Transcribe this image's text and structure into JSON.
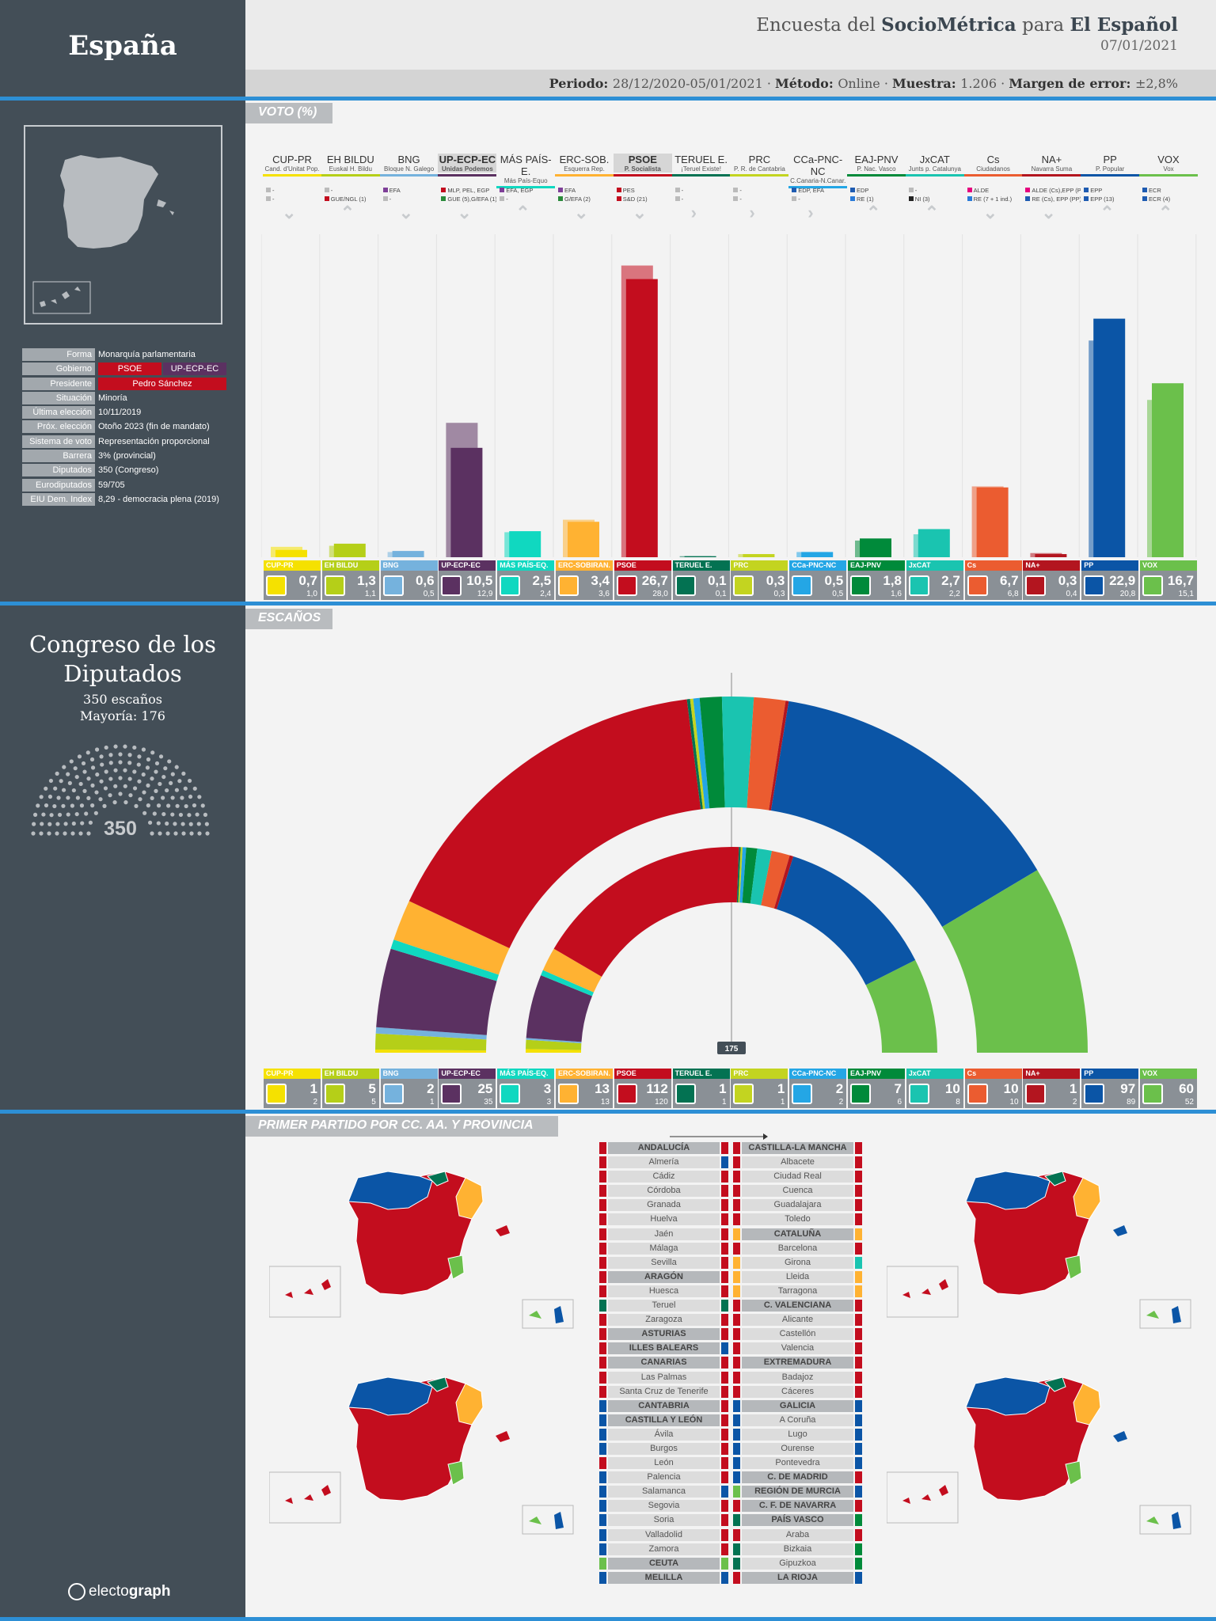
{
  "country": "España",
  "header": {
    "title_parts": [
      "Encuesta del ",
      "SocioMétrica",
      " para ",
      "El Español"
    ],
    "date": "07/01/2021",
    "meta_parts": [
      "Periodo: ",
      "28/12/2020-05/01/2021",
      " · ",
      "Método: ",
      "Online",
      " · ",
      "Muestra: ",
      "1.206",
      " · ",
      "Margen de error: ",
      "±2,8%"
    ]
  },
  "sections": {
    "votes": "VOTO (%)",
    "seats": "ESCAÑOS",
    "first": "PRIMER PARTIDO POR CC. AA. Y PROVINCIA"
  },
  "info": [
    {
      "label": "Forma",
      "value": "Monarquía parlamentaria"
    },
    {
      "label": "Gobierno",
      "value": "",
      "badges": [
        {
          "text": "PSOE",
          "color": "#c30d1e"
        },
        {
          "text": "UP-ECP-EC",
          "color": "#5b3161"
        }
      ]
    },
    {
      "label": "Presidente",
      "value": "",
      "badges": [
        {
          "text": "Pedro Sánchez",
          "color": "#c30d1e"
        }
      ]
    },
    {
      "label": "Situación",
      "value": "Minoría"
    },
    {
      "label": "Última elección",
      "value": "10/11/2019"
    },
    {
      "label": "Próx. elección",
      "value": "Otoño 2023 (fin de mandato)"
    },
    {
      "label": "Sistema de voto",
      "value": "Representación proporcional"
    },
    {
      "label": "Barrera",
      "value": "3% (provincial)"
    },
    {
      "label": "Diputados",
      "value": "350 (Congreso)"
    },
    {
      "label": "Eurodiputados",
      "value": "59/705"
    },
    {
      "label": "EIU Dem. Index",
      "value": "8,29 - democracia plena (2019)"
    }
  ],
  "congress": {
    "title": "Congreso de los Diputados",
    "seats_text": "350 escaños",
    "majority_text": "Mayoría: 176",
    "total": "350",
    "majority_line_label": "175"
  },
  "logo": {
    "part1": "electo",
    "part2": "graph"
  },
  "chart_data": [
    {
      "type": "bar",
      "title": "VOTO (%)",
      "categories": [
        "CUP-PR",
        "EH BILDU",
        "BNG",
        "UP-ECP-EC",
        "MÁS PAÍS-E.",
        "ERC-SOB.",
        "PSOE",
        "TERUEL E.",
        "PRC",
        "CCa-PNC-NC",
        "EAJ-PNV",
        "JxCAT",
        "Cs",
        "NA+",
        "PP",
        "VOX"
      ],
      "series": [
        {
          "values": [
            0.7,
            1.3,
            0.6,
            10.5,
            2.5,
            3.4,
            26.7,
            0.1,
            0.3,
            0.5,
            1.8,
            2.7,
            6.7,
            0.3,
            22.9,
            16.7
          ]
        },
        {
          "values": [
            1.0,
            1.1,
            0.5,
            12.9,
            2.4,
            3.6,
            28.0,
            0.1,
            0.3,
            0.5,
            1.6,
            2.2,
            6.8,
            0.4,
            20.8,
            15.1
          ]
        }
      ],
      "ylim": [
        0,
        30
      ]
    },
    {
      "type": "pie",
      "title": "ESCAÑOS",
      "categories": [
        "CUP-PR",
        "EH BILDU",
        "BNG",
        "UP-ECP-EC",
        "MÁS PAÍS-E.",
        "ERC-SOB.",
        "PSOE",
        "TERUEL E.",
        "PRC",
        "CCa-PNC-NC",
        "EAJ-PNV",
        "JxCAT",
        "Cs",
        "NA+",
        "PP",
        "VOX"
      ],
      "series": [
        {
          "values": [
            1,
            5,
            2,
            25,
            3,
            13,
            112,
            1,
            1,
            2,
            7,
            10,
            10,
            1,
            97,
            60
          ]
        },
        {
          "values": [
            2,
            5,
            1,
            35,
            3,
            13,
            120,
            1,
            1,
            2,
            6,
            8,
            10,
            2,
            89,
            52
          ]
        }
      ]
    }
  ],
  "parties": [
    {
      "abbr": "CUP-PR",
      "name": "Cand. d'Unitat Pop.",
      "box": "CUP-PR",
      "color": "#f5e100",
      "alliances": [
        "-",
        "-"
      ],
      "acolors": [
        "#bbb",
        "#bbb"
      ],
      "chev": "⌄",
      "vote": "0,7",
      "vote_prev": "1,0",
      "seats": "1",
      "seats_prev": "2"
    },
    {
      "abbr": "EH BILDU",
      "name": "Euskal H. Bildu",
      "box": "EH BILDU",
      "color": "#b5cf18",
      "alliances": [
        "-",
        "GUE/NGL (1)"
      ],
      "acolors": [
        "#bbb",
        "#c30d1e"
      ],
      "chev": "⌃",
      "vote": "1,3",
      "vote_prev": "1,1",
      "seats": "5",
      "seats_prev": "5"
    },
    {
      "abbr": "BNG",
      "name": "Bloque N. Galego",
      "box": "BNG",
      "color": "#75b2dd",
      "alliances": [
        "EFA",
        "-"
      ],
      "acolors": [
        "#7e3f98",
        "#bbb"
      ],
      "chev": "⌄",
      "vote": "0,6",
      "vote_prev": "0,5",
      "seats": "2",
      "seats_prev": "1"
    },
    {
      "abbr": "UP-ECP-EC",
      "name": "Unidas Podemos",
      "box": "UP-ECP-EC",
      "color": "#5b3161",
      "alliances": [
        "MLP, PEL, EGP",
        "GUE (5),G/EFA (1)"
      ],
      "acolors": [
        "#c30d1e",
        "#2a8a3a"
      ],
      "chev": "⌄",
      "vote": "10,5",
      "vote_prev": "12,9",
      "seats": "25",
      "seats_prev": "35"
    },
    {
      "abbr": "MÁS PAÍS-E.",
      "name": "Más País-Equo",
      "box": "MÁS PAÍS-EQ.",
      "color": "#10d8c0",
      "alliances": [
        "EFA, EGP",
        "-"
      ],
      "acolors": [
        "#7e3f98",
        "#bbb"
      ],
      "chev": "⌃",
      "vote": "2,5",
      "vote_prev": "2,4",
      "seats": "3",
      "seats_prev": "3"
    },
    {
      "abbr": "ERC-SOB.",
      "name": "Esquerra Rep.",
      "box": "ERC-SOBIRAN.",
      "color": "#ffb232",
      "alliances": [
        "EFA",
        "G/EFA (2)"
      ],
      "acolors": [
        "#7e3f98",
        "#2a8a3a"
      ],
      "chev": "⌄",
      "vote": "3,4",
      "vote_prev": "3,6",
      "seats": "13",
      "seats_prev": "13"
    },
    {
      "abbr": "PSOE",
      "name": "P. Socialista",
      "box": "PSOE",
      "color": "#c30d1e",
      "alliances": [
        "PES",
        "S&D (21)"
      ],
      "acolors": [
        "#c30d1e",
        "#c30d1e"
      ],
      "chev": "⌄",
      "vote": "26,7",
      "vote_prev": "28,0",
      "seats": "112",
      "seats_prev": "120"
    },
    {
      "abbr": "TERUEL E.",
      "name": "¡Teruel Existe!",
      "box": "TERUEL E.",
      "color": "#037252",
      "alliances": [
        "-",
        "-"
      ],
      "acolors": [
        "#bbb",
        "#bbb"
      ],
      "chev": "›",
      "vote": "0,1",
      "vote_prev": "0,1",
      "seats": "1",
      "seats_prev": "1"
    },
    {
      "abbr": "PRC",
      "name": "P. R. de Cantabria",
      "box": "PRC",
      "color": "#c3d420",
      "alliances": [
        "-",
        "-"
      ],
      "acolors": [
        "#bbb",
        "#bbb"
      ],
      "chev": "›",
      "vote": "0,3",
      "vote_prev": "0,3",
      "seats": "1",
      "seats_prev": "1"
    },
    {
      "abbr": "CCa-PNC-NC",
      "name": "C.Canaria-N.Canar.",
      "box": "CCa-PNC-NC",
      "color": "#24a6e5",
      "alliances": [
        "EDP, EFA",
        "-"
      ],
      "acolors": [
        "#1e5bb1",
        "#bbb"
      ],
      "chev": "›",
      "vote": "0,5",
      "vote_prev": "0,5",
      "seats": "2",
      "seats_prev": "2"
    },
    {
      "abbr": "EAJ-PNV",
      "name": "P. Nac. Vasco",
      "box": "EAJ-PNV",
      "color": "#008a3a",
      "alliances": [
        "EDP",
        "RE (1)"
      ],
      "acolors": [
        "#1e5bb1",
        "#2a7ad8"
      ],
      "chev": "⌃",
      "vote": "1,8",
      "vote_prev": "1,6",
      "seats": "7",
      "seats_prev": "6"
    },
    {
      "abbr": "JxCAT",
      "name": "Junts p. Catalunya",
      "box": "JxCAT",
      "color": "#1ac4b0",
      "alliances": [
        "-",
        "NI (3)"
      ],
      "acolors": [
        "#bbb",
        "#222"
      ],
      "chev": "⌃",
      "vote": "2,7",
      "vote_prev": "2,2",
      "seats": "10",
      "seats_prev": "8"
    },
    {
      "abbr": "Cs",
      "name": "Ciudadanos",
      "box": "Cs",
      "color": "#eb5c30",
      "alliances": [
        "ALDE",
        "RE (7 + 1 ind.)"
      ],
      "acolors": [
        "#e5007e",
        "#2a7ad8"
      ],
      "chev": "⌄",
      "vote": "6,7",
      "vote_prev": "6,8",
      "seats": "10",
      "seats_prev": "10"
    },
    {
      "abbr": "NA+",
      "name": "Navarra Suma",
      "box": "NA+",
      "color": "#b3151f",
      "alliances": [
        "ALDE (Cs),EPP (PP)",
        "RE (Cs), EPP (PP)"
      ],
      "acolors": [
        "#e5007e",
        "#1e5bb1"
      ],
      "chev": "⌄",
      "vote": "0,3",
      "vote_prev": "0,4",
      "seats": "1",
      "seats_prev": "2"
    },
    {
      "abbr": "PP",
      "name": "P. Popular",
      "box": "PP",
      "color": "#0b55a6",
      "alliances": [
        "EPP",
        "EPP (13)"
      ],
      "acolors": [
        "#1e5bb1",
        "#1e5bb1"
      ],
      "chev": "⌃",
      "vote": "22,9",
      "vote_prev": "20,8",
      "seats": "97",
      "seats_prev": "89"
    },
    {
      "abbr": "VOX",
      "name": "Vox",
      "box": "VOX",
      "color": "#6bc04b",
      "alliances": [
        "ECR",
        "ECR (4)"
      ],
      "acolors": [
        "#1e5bb1",
        "#1e5bb1"
      ],
      "chev": "⌃",
      "vote": "16,7",
      "vote_prev": "15,1",
      "seats": "60",
      "seats_prev": "52"
    }
  ],
  "regions_left": [
    {
      "t": "ANDALUCÍA",
      "h": true,
      "l": "#c30d1e",
      "r": "#c30d1e"
    },
    {
      "t": "Almería",
      "l": "#c30d1e",
      "r": "#0b55a6"
    },
    {
      "t": "Cádiz",
      "l": "#c30d1e",
      "r": "#c30d1e"
    },
    {
      "t": "Córdoba",
      "l": "#c30d1e",
      "r": "#c30d1e"
    },
    {
      "t": "Granada",
      "l": "#c30d1e",
      "r": "#c30d1e"
    },
    {
      "t": "Huelva",
      "l": "#c30d1e",
      "r": "#c30d1e"
    },
    {
      "t": "Jaén",
      "l": "#c30d1e",
      "r": "#c30d1e"
    },
    {
      "t": "Málaga",
      "l": "#c30d1e",
      "r": "#c30d1e"
    },
    {
      "t": "Sevilla",
      "l": "#c30d1e",
      "r": "#c30d1e"
    },
    {
      "t": "ARAGÓN",
      "h": true,
      "l": "#c30d1e",
      "r": "#c30d1e"
    },
    {
      "t": "Huesca",
      "l": "#c30d1e",
      "r": "#c30d1e"
    },
    {
      "t": "Teruel",
      "l": "#037252",
      "r": "#037252"
    },
    {
      "t": "Zaragoza",
      "l": "#c30d1e",
      "r": "#c30d1e"
    },
    {
      "t": "ASTURIAS",
      "h": true,
      "l": "#c30d1e",
      "r": "#c30d1e"
    },
    {
      "t": "ILLES BALEARS",
      "h": true,
      "l": "#c30d1e",
      "r": "#0b55a6"
    },
    {
      "t": "CANARIAS",
      "h": true,
      "l": "#c30d1e",
      "r": "#c30d1e"
    },
    {
      "t": "Las Palmas",
      "l": "#c30d1e",
      "r": "#c30d1e"
    },
    {
      "t": "Santa Cruz de Tenerife",
      "l": "#c30d1e",
      "r": "#c30d1e"
    },
    {
      "t": "CANTABRIA",
      "h": true,
      "l": "#0b55a6",
      "r": "#c30d1e"
    },
    {
      "t": "CASTILLA Y LEÓN",
      "h": true,
      "l": "#0b55a6",
      "r": "#c30d1e"
    },
    {
      "t": "Ávila",
      "l": "#0b55a6",
      "r": "#c30d1e"
    },
    {
      "t": "Burgos",
      "l": "#0b55a6",
      "r": "#c30d1e"
    },
    {
      "t": "León",
      "l": "#c30d1e",
      "r": "#c30d1e"
    },
    {
      "t": "Palencia",
      "l": "#0b55a6",
      "r": "#c30d1e"
    },
    {
      "t": "Salamanca",
      "l": "#0b55a6",
      "r": "#0b55a6"
    },
    {
      "t": "Segovia",
      "l": "#0b55a6",
      "r": "#c30d1e"
    },
    {
      "t": "Soria",
      "l": "#0b55a6",
      "r": "#c30d1e"
    },
    {
      "t": "Valladolid",
      "l": "#0b55a6",
      "r": "#c30d1e"
    },
    {
      "t": "Zamora",
      "l": "#0b55a6",
      "r": "#c30d1e"
    },
    {
      "t": "CEUTA",
      "h": true,
      "l": "#6bc04b",
      "r": "#6bc04b"
    },
    {
      "t": "MELILLA",
      "h": true,
      "l": "#0b55a6",
      "r": "#0b55a6"
    }
  ],
  "regions_right": [
    {
      "t": "CASTILLA-LA MANCHA",
      "h": true,
      "l": "#c30d1e",
      "r": "#c30d1e"
    },
    {
      "t": "Albacete",
      "l": "#c30d1e",
      "r": "#c30d1e"
    },
    {
      "t": "Ciudad Real",
      "l": "#c30d1e",
      "r": "#c30d1e"
    },
    {
      "t": "Cuenca",
      "l": "#c30d1e",
      "r": "#c30d1e"
    },
    {
      "t": "Guadalajara",
      "l": "#c30d1e",
      "r": "#c30d1e"
    },
    {
      "t": "Toledo",
      "l": "#c30d1e",
      "r": "#c30d1e"
    },
    {
      "t": "CATALUÑA",
      "h": true,
      "l": "#ffb232",
      "r": "#ffb232"
    },
    {
      "t": "Barcelona",
      "l": "#c30d1e",
      "r": "#c30d1e"
    },
    {
      "t": "Girona",
      "l": "#ffb232",
      "r": "#1ac4b0"
    },
    {
      "t": "Lleida",
      "l": "#ffb232",
      "r": "#ffb232"
    },
    {
      "t": "Tarragona",
      "l": "#ffb232",
      "r": "#ffb232"
    },
    {
      "t": "C. VALENCIANA",
      "h": true,
      "l": "#c30d1e",
      "r": "#c30d1e"
    },
    {
      "t": "Alicante",
      "l": "#c30d1e",
      "r": "#c30d1e"
    },
    {
      "t": "Castellón",
      "l": "#c30d1e",
      "r": "#c30d1e"
    },
    {
      "t": "Valencia",
      "l": "#c30d1e",
      "r": "#c30d1e"
    },
    {
      "t": "EXTREMADURA",
      "h": true,
      "l": "#c30d1e",
      "r": "#c30d1e"
    },
    {
      "t": "Badajoz",
      "l": "#c30d1e",
      "r": "#c30d1e"
    },
    {
      "t": "Cáceres",
      "l": "#c30d1e",
      "r": "#c30d1e"
    },
    {
      "t": "GALICIA",
      "h": true,
      "l": "#0b55a6",
      "r": "#0b55a6"
    },
    {
      "t": "A Coruña",
      "l": "#0b55a6",
      "r": "#0b55a6"
    },
    {
      "t": "Lugo",
      "l": "#0b55a6",
      "r": "#0b55a6"
    },
    {
      "t": "Ourense",
      "l": "#0b55a6",
      "r": "#0b55a6"
    },
    {
      "t": "Pontevedra",
      "l": "#0b55a6",
      "r": "#0b55a6"
    },
    {
      "t": "C. DE MADRID",
      "h": true,
      "l": "#0b55a6",
      "r": "#c30d1e"
    },
    {
      "t": "REGIÓN DE MURCIA",
      "h": true,
      "l": "#6bc04b",
      "r": "#0b55a6"
    },
    {
      "t": "C. F. DE NAVARRA",
      "h": true,
      "l": "#c30d1e",
      "r": "#c30d1e"
    },
    {
      "t": "PAÍS VASCO",
      "h": true,
      "l": "#037252",
      "r": "#008a3a"
    },
    {
      "t": "Araba",
      "l": "#c30d1e",
      "r": "#c30d1e"
    },
    {
      "t": "Bizkaia",
      "l": "#037252",
      "r": "#008a3a"
    },
    {
      "t": "Gipuzkoa",
      "l": "#037252",
      "r": "#008a3a"
    },
    {
      "t": "LA RIOJA",
      "h": true,
      "l": "#c30d1e",
      "r": "#0b55a6"
    }
  ]
}
